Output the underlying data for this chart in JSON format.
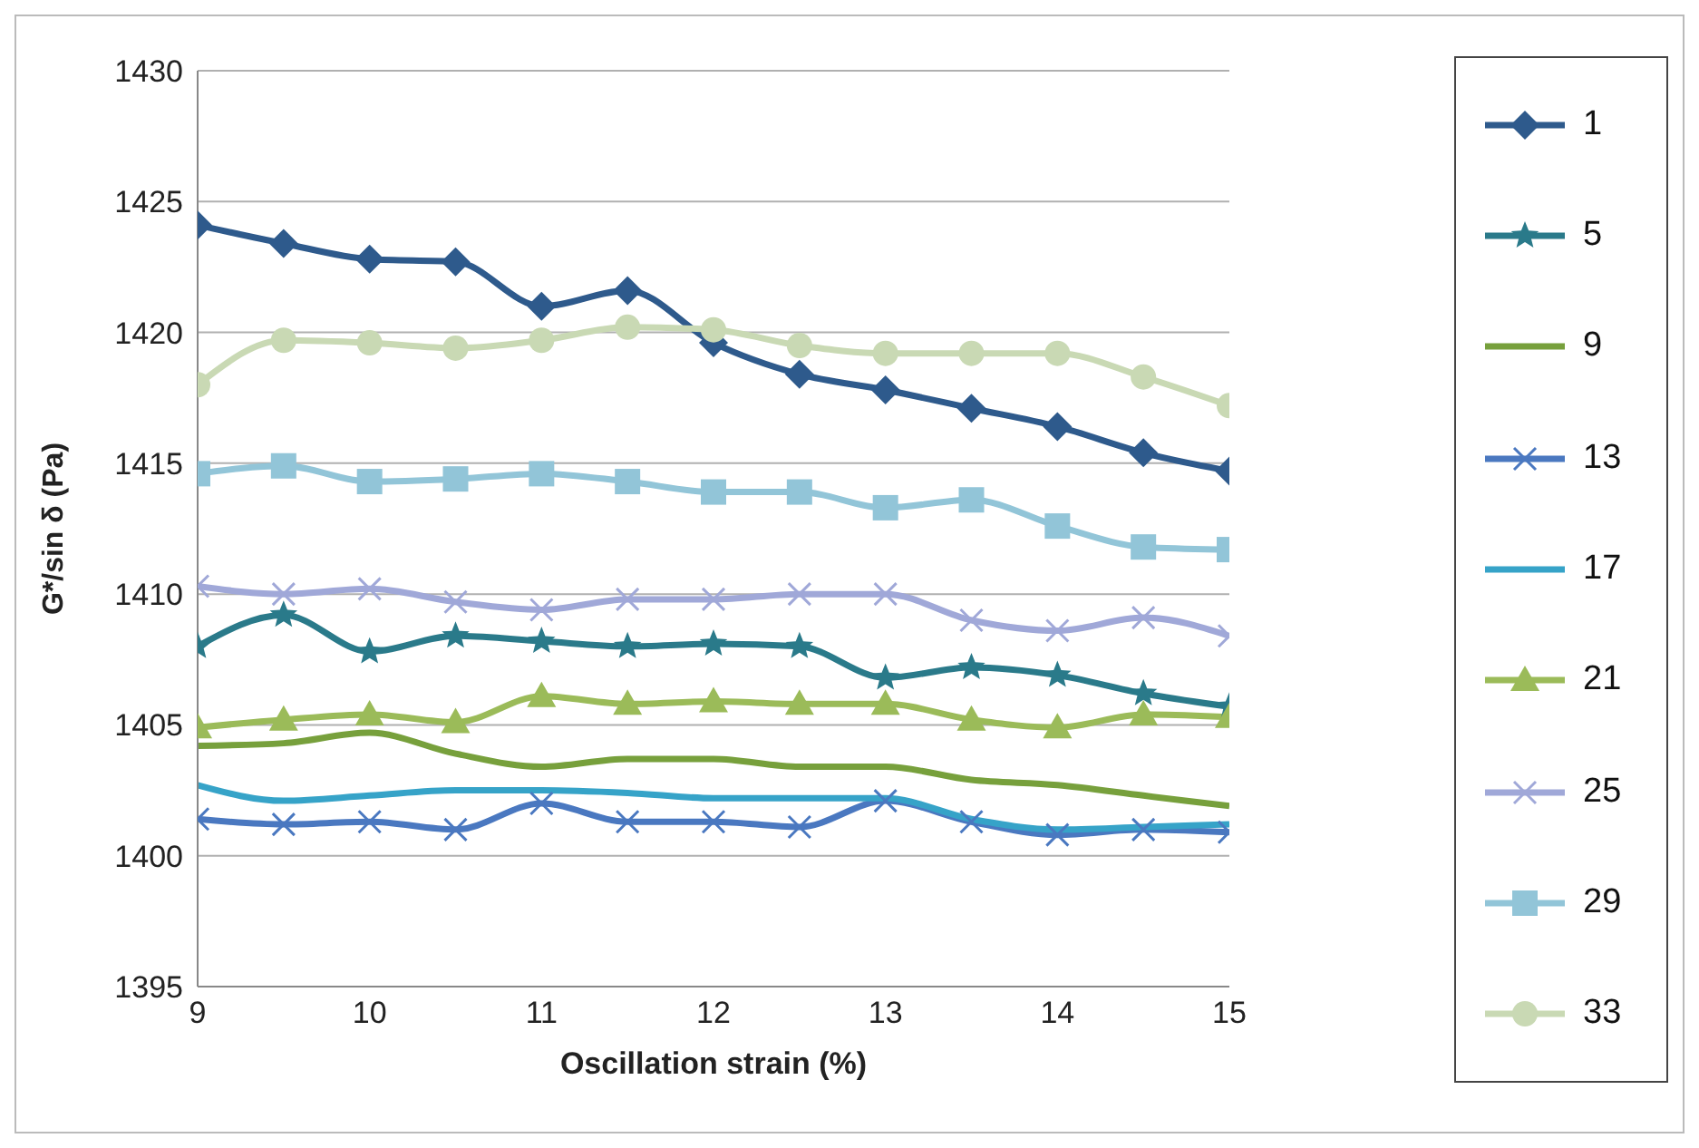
{
  "chart_data": {
    "type": "line",
    "xlabel": "Oscillation strain (%)",
    "ylabel": "G*/sin δ (Pa)",
    "x": [
      9,
      9.5,
      10,
      10.5,
      11,
      11.5,
      12,
      12.5,
      13,
      13.5,
      14,
      14.5,
      15
    ],
    "xlim": [
      9,
      15
    ],
    "xticks": [
      9,
      10,
      11,
      12,
      13,
      14,
      15
    ],
    "ylim": [
      1395,
      1430
    ],
    "yticks": [
      1395,
      1400,
      1405,
      1410,
      1415,
      1420,
      1425,
      1430
    ],
    "grid": "y",
    "legend": "right",
    "line_style": "solid",
    "series": [
      {
        "name": "1",
        "color": "#2e5a8c",
        "marker": "diamond",
        "values": [
          1424.1,
          1423.4,
          1422.8,
          1422.7,
          1421.0,
          1421.6,
          1419.6,
          1418.4,
          1417.8,
          1417.1,
          1416.4,
          1415.4,
          1414.7
        ]
      },
      {
        "name": "5",
        "color": "#2a7a8a",
        "marker": "star",
        "values": [
          1408.0,
          1409.2,
          1407.8,
          1408.4,
          1408.2,
          1408.0,
          1408.1,
          1408.0,
          1406.8,
          1407.2,
          1406.9,
          1406.2,
          1405.7
        ]
      },
      {
        "name": "9",
        "color": "#77a03c",
        "marker": "none",
        "values": [
          1404.2,
          1404.3,
          1404.7,
          1403.9,
          1403.4,
          1403.7,
          1403.7,
          1403.4,
          1403.4,
          1402.9,
          1402.7,
          1402.3,
          1401.9
        ]
      },
      {
        "name": "13",
        "color": "#4a78c0",
        "marker": "cross",
        "values": [
          1401.4,
          1401.2,
          1401.3,
          1401.0,
          1402.0,
          1401.3,
          1401.3,
          1401.1,
          1402.1,
          1401.3,
          1400.8,
          1401.0,
          1400.9
        ]
      },
      {
        "name": "17",
        "color": "#36a3c8",
        "marker": "none",
        "values": [
          1402.7,
          1402.1,
          1402.3,
          1402.5,
          1402.5,
          1402.4,
          1402.2,
          1402.2,
          1402.2,
          1401.4,
          1401.0,
          1401.1,
          1401.2
        ]
      },
      {
        "name": "21",
        "color": "#9bbb59",
        "marker": "triangle",
        "values": [
          1404.9,
          1405.2,
          1405.4,
          1405.1,
          1406.1,
          1405.8,
          1405.9,
          1405.8,
          1405.8,
          1405.2,
          1404.9,
          1405.4,
          1405.3
        ]
      },
      {
        "name": "25",
        "color": "#a0a8d8",
        "marker": "cross",
        "values": [
          1410.3,
          1410.0,
          1410.2,
          1409.7,
          1409.4,
          1409.8,
          1409.8,
          1410.0,
          1410.0,
          1409.0,
          1408.6,
          1409.1,
          1408.4
        ]
      },
      {
        "name": "29",
        "color": "#92c5d8",
        "marker": "square",
        "values": [
          1414.6,
          1414.9,
          1414.3,
          1414.4,
          1414.6,
          1414.3,
          1413.9,
          1413.9,
          1413.3,
          1413.6,
          1412.6,
          1411.8,
          1411.7
        ]
      },
      {
        "name": "33",
        "color": "#c9d9b4",
        "marker": "circle",
        "values": [
          1418.0,
          1419.7,
          1419.6,
          1419.4,
          1419.7,
          1420.2,
          1420.1,
          1419.5,
          1419.2,
          1419.2,
          1419.2,
          1418.3,
          1417.2
        ]
      }
    ]
  }
}
